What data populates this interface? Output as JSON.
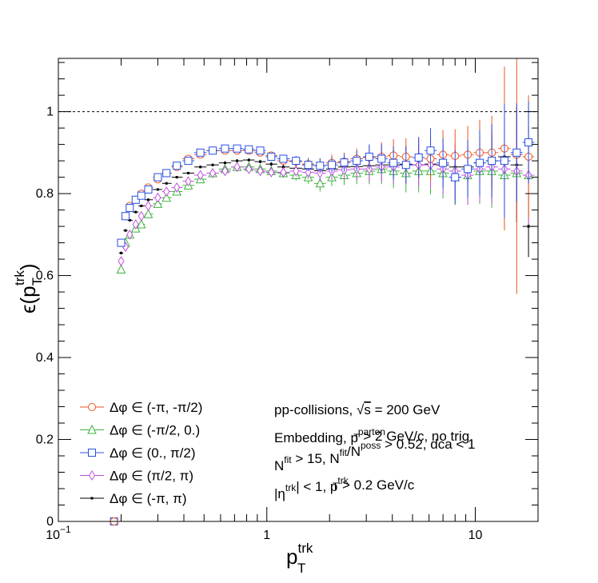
{
  "chart_data": {
    "type": "scatter",
    "title": "",
    "xscale": "log",
    "xlim": [
      0.1,
      20
    ],
    "ylim": [
      0,
      1.13
    ],
    "grid": false,
    "legend_placement": "bottom-left",
    "xlabel": {
      "base": "p",
      "sub": "T",
      "sup": "trk"
    },
    "ylabel": {
      "base": "ϵ(p",
      "sub": "T",
      "sup": "trk",
      "end": ")"
    },
    "yticks": [
      {
        "value": 0,
        "label": "0"
      },
      {
        "value": 0.2,
        "label": "0.2"
      },
      {
        "value": 0.4,
        "label": "0.4"
      },
      {
        "value": 0.6,
        "label": "0.6"
      },
      {
        "value": 0.8,
        "label": "0.8"
      },
      {
        "value": 1,
        "label": "1"
      }
    ],
    "xticks": [
      {
        "value": 0.1,
        "base": "10",
        "exp": "−1"
      },
      {
        "value": 1,
        "base": "1",
        "exp": ""
      },
      {
        "value": 10,
        "base": "10",
        "exp": ""
      }
    ],
    "reference_line": {
      "y": 1.0,
      "style": "dashed"
    },
    "x": [
      0.2,
      0.21,
      0.22,
      0.235,
      0.25,
      0.27,
      0.3,
      0.33,
      0.37,
      0.42,
      0.48,
      0.55,
      0.63,
      0.72,
      0.82,
      0.93,
      1.05,
      1.2,
      1.38,
      1.58,
      1.8,
      2.05,
      2.35,
      2.7,
      3.1,
      3.55,
      4.05,
      4.65,
      5.35,
      6.1,
      7.0,
      8.0,
      9.2,
      10.5,
      12.0,
      13.8,
      15.8,
      18.0
    ],
    "series": [
      {
        "name": "Δφ ∈ (-π, -π/2)",
        "color": "#f0541e",
        "marker": "circle-open",
        "y": [
          0.68,
          0.745,
          0.77,
          0.785,
          0.8,
          0.815,
          0.835,
          0.85,
          0.865,
          0.885,
          0.895,
          0.905,
          0.905,
          0.905,
          0.905,
          0.9,
          0.893,
          0.88,
          0.878,
          0.872,
          0.868,
          0.875,
          0.878,
          0.885,
          0.888,
          0.89,
          0.893,
          0.89,
          0.888,
          0.885,
          0.895,
          0.892,
          0.895,
          0.9,
          0.9,
          0.91,
          0.895,
          0.89
        ],
        "err": [
          0.005,
          0.005,
          0.005,
          0.005,
          0.005,
          0.005,
          0.005,
          0.005,
          0.005,
          0.005,
          0.005,
          0.005,
          0.006,
          0.006,
          0.006,
          0.007,
          0.008,
          0.01,
          0.012,
          0.015,
          0.018,
          0.02,
          0.022,
          0.025,
          0.03,
          0.035,
          0.04,
          0.045,
          0.05,
          0.055,
          0.06,
          0.065,
          0.07,
          0.08,
          0.09,
          0.2,
          0.34,
          0.15
        ]
      },
      {
        "name": "Δφ ∈ (-π/2, 0.)",
        "color": "#3cb43c",
        "marker": "triangle-open",
        "y": [
          0.615,
          0.68,
          0.7,
          0.715,
          0.725,
          0.75,
          0.775,
          0.79,
          0.805,
          0.82,
          0.835,
          0.85,
          0.86,
          0.865,
          0.865,
          0.86,
          0.855,
          0.85,
          0.845,
          0.84,
          0.825,
          0.84,
          0.845,
          0.85,
          0.855,
          0.86,
          0.855,
          0.85,
          0.855,
          0.855,
          0.85,
          0.84,
          0.845,
          0.855,
          0.855,
          0.845,
          0.85,
          0.845
        ],
        "err": [
          0.006,
          0.006,
          0.006,
          0.006,
          0.006,
          0.006,
          0.006,
          0.006,
          0.006,
          0.006,
          0.006,
          0.006,
          0.007,
          0.007,
          0.007,
          0.008,
          0.009,
          0.011,
          0.013,
          0.016,
          0.02,
          0.022,
          0.024,
          0.027,
          0.032,
          0.037,
          0.042,
          0.047,
          0.052,
          0.057,
          0.062,
          0.068,
          0.072,
          0.08,
          0.09,
          0.1,
          0.11,
          0.12
        ]
      },
      {
        "name": "Δφ ∈ (0., π/2)",
        "color": "#2850e6",
        "marker": "square-open",
        "y": [
          0.68,
          0.745,
          0.765,
          0.785,
          0.795,
          0.81,
          0.84,
          0.85,
          0.868,
          0.88,
          0.9,
          0.905,
          0.91,
          0.91,
          0.908,
          0.905,
          0.89,
          0.885,
          0.88,
          0.87,
          0.868,
          0.87,
          0.876,
          0.88,
          0.89,
          0.885,
          0.875,
          0.87,
          0.888,
          0.905,
          0.875,
          0.84,
          0.86,
          0.875,
          0.88,
          0.88,
          0.9,
          0.925
        ],
        "err": [
          0.005,
          0.005,
          0.005,
          0.005,
          0.005,
          0.005,
          0.005,
          0.005,
          0.005,
          0.005,
          0.005,
          0.005,
          0.006,
          0.006,
          0.006,
          0.007,
          0.008,
          0.01,
          0.012,
          0.015,
          0.018,
          0.02,
          0.022,
          0.025,
          0.03,
          0.035,
          0.04,
          0.045,
          0.05,
          0.055,
          0.06,
          0.065,
          0.07,
          0.08,
          0.09,
          0.14,
          0.12,
          0.1
        ]
      },
      {
        "name": "Δφ ∈ (π/2, π)",
        "color": "#c050e0",
        "marker": "diamond-open",
        "y": [
          0.635,
          0.67,
          0.7,
          0.725,
          0.745,
          0.77,
          0.79,
          0.805,
          0.815,
          0.83,
          0.845,
          0.85,
          0.855,
          0.865,
          0.86,
          0.855,
          0.852,
          0.852,
          0.855,
          0.852,
          0.85,
          0.855,
          0.858,
          0.86,
          0.86,
          0.865,
          0.865,
          0.87,
          0.87,
          0.87,
          0.86,
          0.855,
          0.845,
          0.86,
          0.865,
          0.86,
          0.855,
          0.845
        ],
        "err": [
          0.006,
          0.006,
          0.006,
          0.006,
          0.006,
          0.006,
          0.006,
          0.006,
          0.006,
          0.006,
          0.006,
          0.006,
          0.007,
          0.007,
          0.007,
          0.008,
          0.009,
          0.011,
          0.013,
          0.016,
          0.02,
          0.022,
          0.024,
          0.027,
          0.032,
          0.037,
          0.042,
          0.047,
          0.052,
          0.057,
          0.062,
          0.068,
          0.072,
          0.08,
          0.09,
          0.1,
          0.11,
          0.12
        ]
      },
      {
        "name": "Δφ ∈ (-π, π)",
        "color": "#000000",
        "marker": "dot",
        "y": [
          0.655,
          0.71,
          0.735,
          0.755,
          0.77,
          0.785,
          0.81,
          0.825,
          0.84,
          0.85,
          0.865,
          0.87,
          0.875,
          0.88,
          0.882,
          0.878,
          0.872,
          0.865,
          0.862,
          0.86,
          0.856,
          0.86,
          0.865,
          0.866,
          0.868,
          0.87,
          0.87,
          0.872,
          0.87,
          0.872,
          0.87,
          0.865,
          0.865,
          0.875,
          0.88,
          0.89,
          0.87,
          0.72
        ],
        "err": [
          0.003,
          0.003,
          0.003,
          0.003,
          0.003,
          0.003,
          0.003,
          0.003,
          0.003,
          0.003,
          0.003,
          0.003,
          0.004,
          0.004,
          0.004,
          0.004,
          0.005,
          0.006,
          0.007,
          0.009,
          0.011,
          0.012,
          0.013,
          0.015,
          0.018,
          0.021,
          0.024,
          0.027,
          0.03,
          0.033,
          0.036,
          0.04,
          0.045,
          0.05,
          0.06,
          0.08,
          0.14,
          0.075
        ]
      }
    ],
    "extra_points": [
      {
        "x": 0.185,
        "y": 0.0,
        "series": 2
      },
      {
        "x": 0.185,
        "y": 0.0,
        "series": 0
      }
    ],
    "annotations": [
      {
        "id": "anno-collisions",
        "parts": [
          {
            "t": "pp-collisions, "
          },
          {
            "t": "√",
            "style": "sqrt"
          },
          {
            "t": "s",
            "overline": true
          },
          {
            "t": " = 200 GeV"
          }
        ]
      },
      {
        "id": "anno-embedding",
        "parts": [
          {
            "t": "Embedding, p"
          },
          {
            "t": "parton",
            "style": "sup"
          },
          {
            "t": "T",
            "style": "sub"
          },
          {
            "t": " > 2 GeV/c, no trig."
          }
        ]
      },
      {
        "id": "anno-nfit",
        "parts": [
          {
            "t": "N"
          },
          {
            "t": "fit",
            "style": "sup"
          },
          {
            "t": " > 15, N"
          },
          {
            "t": "fit",
            "style": "sup"
          },
          {
            "t": "/N"
          },
          {
            "t": "poss",
            "style": "sup"
          },
          {
            "t": " > 0.52, dca < 1"
          }
        ]
      },
      {
        "id": "anno-eta",
        "parts": [
          {
            "t": "|η"
          },
          {
            "t": "trk",
            "style": "sup"
          },
          {
            "t": "| < 1, p"
          },
          {
            "t": "trk",
            "style": "sup"
          },
          {
            "t": "T",
            "style": "sub"
          },
          {
            "t": " > 0.2 GeV/c"
          }
        ]
      }
    ]
  }
}
